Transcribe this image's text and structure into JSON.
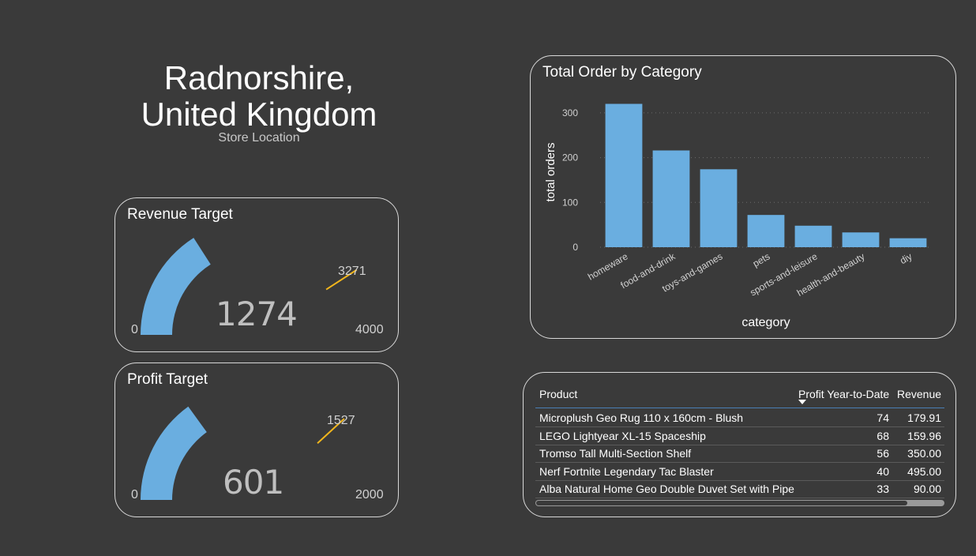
{
  "location": {
    "title_line1": "Radnorshire,",
    "title_line2": "United Kingdom",
    "subtitle": "Store Location"
  },
  "revenue_gauge": {
    "title": "Revenue Target",
    "value": 1274,
    "value_label": "1274",
    "min": 0,
    "min_label": "0",
    "max": 4000,
    "max_label": "4000",
    "target": 3271,
    "target_label": "3271"
  },
  "profit_gauge": {
    "title": "Profit Target",
    "value": 601,
    "value_label": "601",
    "min": 0,
    "min_label": "0",
    "max": 2000,
    "max_label": "2000",
    "target": 1527,
    "target_label": "1527"
  },
  "colors": {
    "background": "#3a3a3a",
    "bar": "#6aaee0",
    "gauge_fill": "#6aaee0",
    "target_marker": "#f2b61c",
    "border": "#d8d8d8"
  },
  "chart_data": {
    "type": "bar",
    "title": "Total Order by Category",
    "xlabel": "category",
    "ylabel": "total orders",
    "categories": [
      "homeware",
      "food-and-drink",
      "toys-and-games",
      "pets",
      "sports-and-leisure",
      "health-and-beauty",
      "diy"
    ],
    "values": [
      320,
      216,
      174,
      72,
      48,
      33,
      20
    ],
    "yticks": [
      0,
      100,
      200,
      300
    ],
    "ylim": [
      0,
      335
    ],
    "grid": true
  },
  "table": {
    "headers": {
      "product": "Product",
      "profit": "Profit Year-to-Date",
      "revenue": "Revenue"
    },
    "sort_icon": "sort-descending-icon",
    "rows": [
      {
        "product": "Microplush Geo Rug 110 x 160cm - Blush",
        "profit": "74",
        "revenue": "179.91"
      },
      {
        "product": "LEGO Lightyear XL-15 Spaceship",
        "profit": "68",
        "revenue": "159.96"
      },
      {
        "product": "Tromso Tall Multi-Section Shelf",
        "profit": "56",
        "revenue": "350.00"
      },
      {
        "product": "Nerf Fortnite Legendary Tac Blaster",
        "profit": "40",
        "revenue": "495.00"
      },
      {
        "product": "Alba Natural Home Geo Double Duvet Set with Pipe",
        "profit": "33",
        "revenue": "90.00"
      }
    ]
  }
}
